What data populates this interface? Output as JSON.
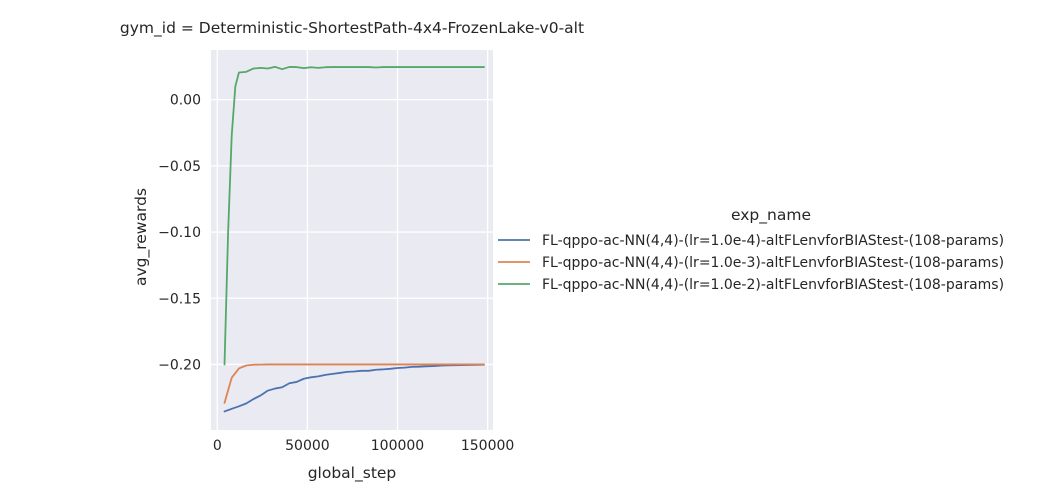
{
  "chart_data": {
    "type": "line",
    "title": "gym_id = Deterministic-ShortestPath-4x4-FrozenLake-v0-alt",
    "xlabel": "global_step",
    "ylabel": "avg_rewards",
    "xlim": [
      -3500,
      153000
    ],
    "ylim": [
      -0.2495,
      0.0375
    ],
    "x_ticks": [
      0,
      50000,
      100000,
      150000
    ],
    "x_tick_labels": [
      "0",
      "50000",
      "100000",
      "150000"
    ],
    "y_ticks": [
      0.0,
      -0.05,
      -0.1,
      -0.15,
      -0.2
    ],
    "y_tick_labels": [
      "0.00",
      "−0.05",
      "−0.10",
      "−0.15",
      "−0.20"
    ],
    "grid": true,
    "legend_title": "exp_name",
    "legend_position": "right",
    "series": [
      {
        "name": "FL-qppo-ac-NN(4,4)-(lr=1.0e-4)-altFLenvforBIAStest-(108-params)",
        "color": "#4c72b0",
        "x": [
          4000,
          8000,
          12000,
          16000,
          20000,
          24000,
          28000,
          32000,
          36000,
          40000,
          44000,
          48000,
          52000,
          56000,
          60000,
          64000,
          68000,
          72000,
          76000,
          80000,
          84000,
          88000,
          92000,
          96000,
          100000,
          104000,
          108000,
          112000,
          116000,
          120000,
          124000,
          128000,
          132000,
          136000,
          140000,
          144000,
          148000
        ],
        "y": [
          -0.2355,
          -0.2335,
          -0.2316,
          -0.2295,
          -0.2262,
          -0.2234,
          -0.2198,
          -0.2182,
          -0.2172,
          -0.2142,
          -0.2132,
          -0.2108,
          -0.2097,
          -0.209,
          -0.2079,
          -0.2071,
          -0.2064,
          -0.2056,
          -0.2053,
          -0.2048,
          -0.2048,
          -0.204,
          -0.2037,
          -0.2033,
          -0.2027,
          -0.2024,
          -0.2018,
          -0.2017,
          -0.2014,
          -0.2012,
          -0.2009,
          -0.2007,
          -0.2006,
          -0.2005,
          -0.2004,
          -0.2003,
          -0.2002
        ]
      },
      {
        "name": "FL-qppo-ac-NN(4,4)-(lr=1.0e-3)-altFLenvforBIAStest-(108-params)",
        "color": "#dd8452",
        "x": [
          4000,
          8000,
          12000,
          16000,
          20000,
          24000,
          28000,
          32000,
          36000,
          40000,
          50000,
          60000,
          80000,
          100000,
          120000,
          148000
        ],
        "y": [
          -0.229,
          -0.21,
          -0.203,
          -0.2008,
          -0.2002,
          -0.2001,
          -0.2,
          -0.2,
          -0.2,
          -0.2,
          -0.2,
          -0.2,
          -0.2,
          -0.2,
          -0.2,
          -0.2
        ]
      },
      {
        "name": "FL-qppo-ac-NN(4,4)-(lr=1.0e-2)-altFLenvforBIAStest-(108-params)",
        "color": "#55a868",
        "x": [
          4000,
          6000,
          8000,
          10000,
          12000,
          16000,
          20000,
          24000,
          28000,
          32000,
          36000,
          40000,
          44000,
          48000,
          52000,
          56000,
          60000,
          64000,
          68000,
          72000,
          76000,
          80000,
          84000,
          88000,
          92000,
          96000,
          100000,
          108000,
          116000,
          124000,
          132000,
          140000,
          148000
        ],
        "y": [
          -0.2,
          -0.1,
          -0.027,
          0.01,
          0.0205,
          0.021,
          0.0235,
          0.024,
          0.0235,
          0.0248,
          0.023,
          0.0247,
          0.0246,
          0.0238,
          0.0245,
          0.024,
          0.0245,
          0.0246,
          0.0246,
          0.0246,
          0.0246,
          0.0246,
          0.0246,
          0.0243,
          0.0246,
          0.0246,
          0.0246,
          0.0246,
          0.0246,
          0.0246,
          0.0246,
          0.0246,
          0.0246
        ]
      }
    ]
  }
}
